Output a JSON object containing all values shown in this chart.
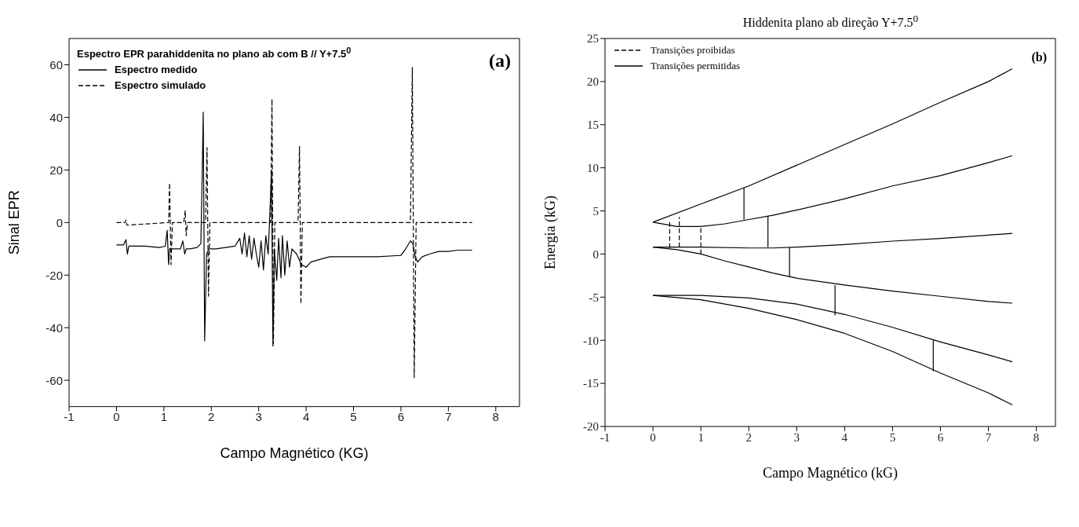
{
  "chart_data": [
    {
      "type": "line",
      "xlabel": "Campo Magnético (KG)",
      "ylabel": "Sinal EPR",
      "legend_title": "Espectro EPR parahiddenita no plano ab com B // Y+7.5$^{0}$",
      "legend": "top left",
      "annotations": [
        "(a)"
      ],
      "xlim": [
        -1,
        8.5
      ],
      "xticks": [
        -1,
        0,
        1,
        2,
        3,
        4,
        5,
        6,
        7,
        8
      ],
      "ylim": [
        -70,
        70
      ],
      "yticks": [
        -60,
        -40,
        -20,
        0,
        20,
        40,
        60
      ],
      "series": [
        {
          "name": "Espectro medido",
          "color": "#000000",
          "line_style": "solid",
          "x": [
            0,
            0.15,
            0.2,
            0.23,
            0.26,
            0.3,
            0.6,
            0.9,
            1.03,
            1.07,
            1.1,
            1.12,
            1.15,
            1.2,
            1.35,
            1.4,
            1.44,
            1.47,
            1.55,
            1.7,
            1.78,
            1.81,
            1.83,
            1.86,
            1.9,
            1.95,
            2.1,
            2.3,
            2.5,
            2.6,
            2.65,
            2.7,
            2.75,
            2.8,
            2.85,
            2.9,
            2.95,
            3.0,
            3.05,
            3.1,
            3.15,
            3.2,
            3.25,
            3.27,
            3.3,
            3.33,
            3.38,
            3.42,
            3.47,
            3.5,
            3.55,
            3.6,
            3.65,
            3.7,
            3.8,
            3.9,
            4.0,
            4.1,
            4.3,
            4.5,
            5.0,
            5.5,
            6.0,
            6.1,
            6.2,
            6.25,
            6.3,
            6.35,
            6.45,
            6.6,
            6.8,
            7.0,
            7.2,
            7.5
          ],
          "values": [
            -8.5,
            -8.5,
            -6.5,
            -12,
            -9,
            -9,
            -9,
            -9.5,
            -9,
            -3,
            -16,
            -10,
            -10,
            -10,
            -10,
            -7,
            -12,
            -10,
            -10,
            -9.5,
            -8,
            20,
            42,
            -45,
            -12,
            -10,
            -10,
            -9.5,
            -9,
            -6,
            -12,
            -4,
            -13,
            -5,
            -14,
            -6,
            -12,
            -17,
            -7,
            -18,
            -5,
            -12,
            10,
            20,
            -47,
            -10,
            -22,
            -6,
            -21,
            -5,
            -20,
            -7,
            -17,
            -10,
            -12,
            -16,
            -17,
            -15,
            -14,
            -13,
            -13,
            -13,
            -12.5,
            -10,
            -7,
            -8,
            -13,
            -15,
            -13,
            -12,
            -11,
            -11,
            -10.5,
            -10.5
          ]
        },
        {
          "name": "Espectro simulado",
          "color": "#000000",
          "line_style": "dashed",
          "x": [
            0,
            0.18,
            0.2,
            0.22,
            1.1,
            1.12,
            1.15,
            1.18,
            1.42,
            1.45,
            1.47,
            1.5,
            1.88,
            1.91,
            1.94,
            1.97,
            3.25,
            3.28,
            3.31,
            3.34,
            3.83,
            3.86,
            3.89,
            3.92,
            6.2,
            6.24,
            6.28,
            6.32,
            7.5
          ],
          "values": [
            0,
            0,
            1,
            -1,
            0,
            15,
            -16,
            0,
            0,
            4.5,
            -5,
            0,
            0,
            28.5,
            -28,
            0,
            0,
            47,
            -46,
            0,
            0,
            29,
            -31,
            0,
            0,
            59,
            -59,
            0,
            0
          ]
        }
      ]
    },
    {
      "type": "line",
      "title": "Hiddenita plano ab direção Y+7.5$^{0}$",
      "xlabel": "Campo Magnético (kG)",
      "ylabel": "Energia (kG)",
      "legend": "top left",
      "annotations": [
        "(b)"
      ],
      "xlim": [
        -1,
        8.4
      ],
      "xticks": [
        -1,
        0,
        1,
        2,
        3,
        4,
        5,
        6,
        7,
        8
      ],
      "ylim": [
        -20,
        25
      ],
      "yticks": [
        -20,
        -15,
        -10,
        -5,
        0,
        5,
        10,
        15,
        20,
        25
      ],
      "series": [
        {
          "color": "#000000",
          "x": [
            0,
            1,
            2,
            3,
            4,
            5,
            6,
            7,
            7.5
          ],
          "values": [
            3.7,
            5.8,
            7.9,
            10.3,
            12.7,
            15.1,
            17.6,
            20,
            21.5
          ]
        },
        {
          "color": "#000000",
          "x": [
            0,
            0.5,
            1,
            1.5,
            2,
            2.5,
            3,
            4,
            5,
            6,
            7,
            7.5
          ],
          "values": [
            3.7,
            3.2,
            3.2,
            3.5,
            4,
            4.5,
            5.1,
            6.4,
            7.9,
            9.1,
            10.6,
            11.4
          ]
        },
        {
          "color": "#000000",
          "x": [
            0,
            1,
            2,
            2.5,
            3,
            4,
            5,
            6,
            7,
            7.5
          ],
          "values": [
            0.8,
            0.8,
            0.7,
            0.7,
            0.8,
            1.1,
            1.5,
            1.8,
            2.2,
            2.4
          ]
        },
        {
          "color": "#000000",
          "x": [
            0,
            0.5,
            1,
            1.5,
            2,
            2.5,
            3,
            4,
            5,
            6,
            7,
            7.5
          ],
          "values": [
            0.8,
            0.5,
            0,
            -0.8,
            -1.5,
            -2.2,
            -2.8,
            -3.6,
            -4.3,
            -4.9,
            -5.5,
            -5.7
          ]
        },
        {
          "color": "#000000",
          "x": [
            0,
            1,
            2,
            3,
            4,
            5,
            6,
            7,
            7.5
          ],
          "values": [
            -4.8,
            -4.8,
            -5.1,
            -5.8,
            -7,
            -8.5,
            -10.2,
            -11.7,
            -12.5
          ]
        },
        {
          "color": "#000000",
          "x": [
            0,
            1,
            2,
            3,
            4,
            5,
            6,
            7,
            7.5
          ],
          "values": [
            -4.8,
            -5.3,
            -6.3,
            -7.6,
            -9.2,
            -11.3,
            -13.8,
            -16.1,
            -17.5
          ]
        },
        {
          "name": "Transições proibidas",
          "color": "#000000",
          "line_style": "dashed",
          "x": [
            0.35,
            0.35,
            null,
            0.55,
            0.55,
            null,
            1,
            1
          ],
          "values": [
            0.7,
            3.9,
            null,
            0.8,
            4.3,
            null,
            0,
            3.2
          ]
        },
        {
          "name": "Transições permitidas",
          "color": "#000000",
          "line_style": "solid",
          "x": [
            1.9,
            1.9,
            null,
            2.4,
            2.4,
            null,
            2.85,
            2.85,
            null,
            3.8,
            3.8,
            null,
            5.85,
            5.85
          ],
          "values": [
            4,
            7.7,
            null,
            0.8,
            4.4,
            null,
            0.8,
            -2.7,
            null,
            -3.6,
            -7.1,
            null,
            -10,
            -13.6
          ]
        }
      ]
    }
  ]
}
